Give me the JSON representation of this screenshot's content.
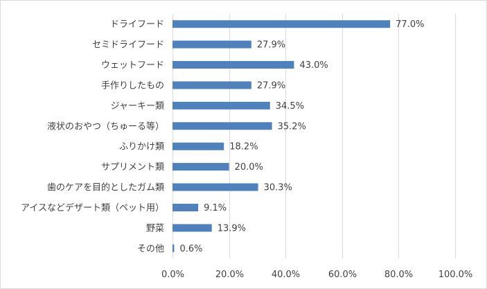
{
  "chart_data": {
    "type": "bar",
    "orientation": "horizontal",
    "title": "",
    "xlabel": "",
    "ylabel": "",
    "xlim": [
      0,
      100
    ],
    "x_ticks": [
      "0.0%",
      "20.0%",
      "40.0%",
      "60.0%",
      "80.0%",
      "100.0%"
    ],
    "grid": true,
    "bar_color": "#4f81bd",
    "categories": [
      "ドライフード",
      "セミドライフード",
      "ウェットフード",
      "手作りしたもの",
      "ジャーキー類",
      "液状のおやつ（ちゅーる等）",
      "ふりかけ類",
      "サプリメント類",
      "歯のケアを目的としたガム類",
      "アイスなどデザート類（ペット用）",
      "野菜",
      "その他"
    ],
    "values": [
      77.0,
      27.9,
      43.0,
      27.9,
      34.5,
      35.2,
      18.2,
      20.0,
      30.3,
      9.1,
      13.9,
      0.6
    ],
    "data_labels": [
      "77.0%",
      "27.9%",
      "43.0%",
      "27.9%",
      "34.5%",
      "35.2%",
      "18.2%",
      "20.0%",
      "30.3%",
      "9.1%",
      "13.9%",
      "0.6%"
    ]
  }
}
